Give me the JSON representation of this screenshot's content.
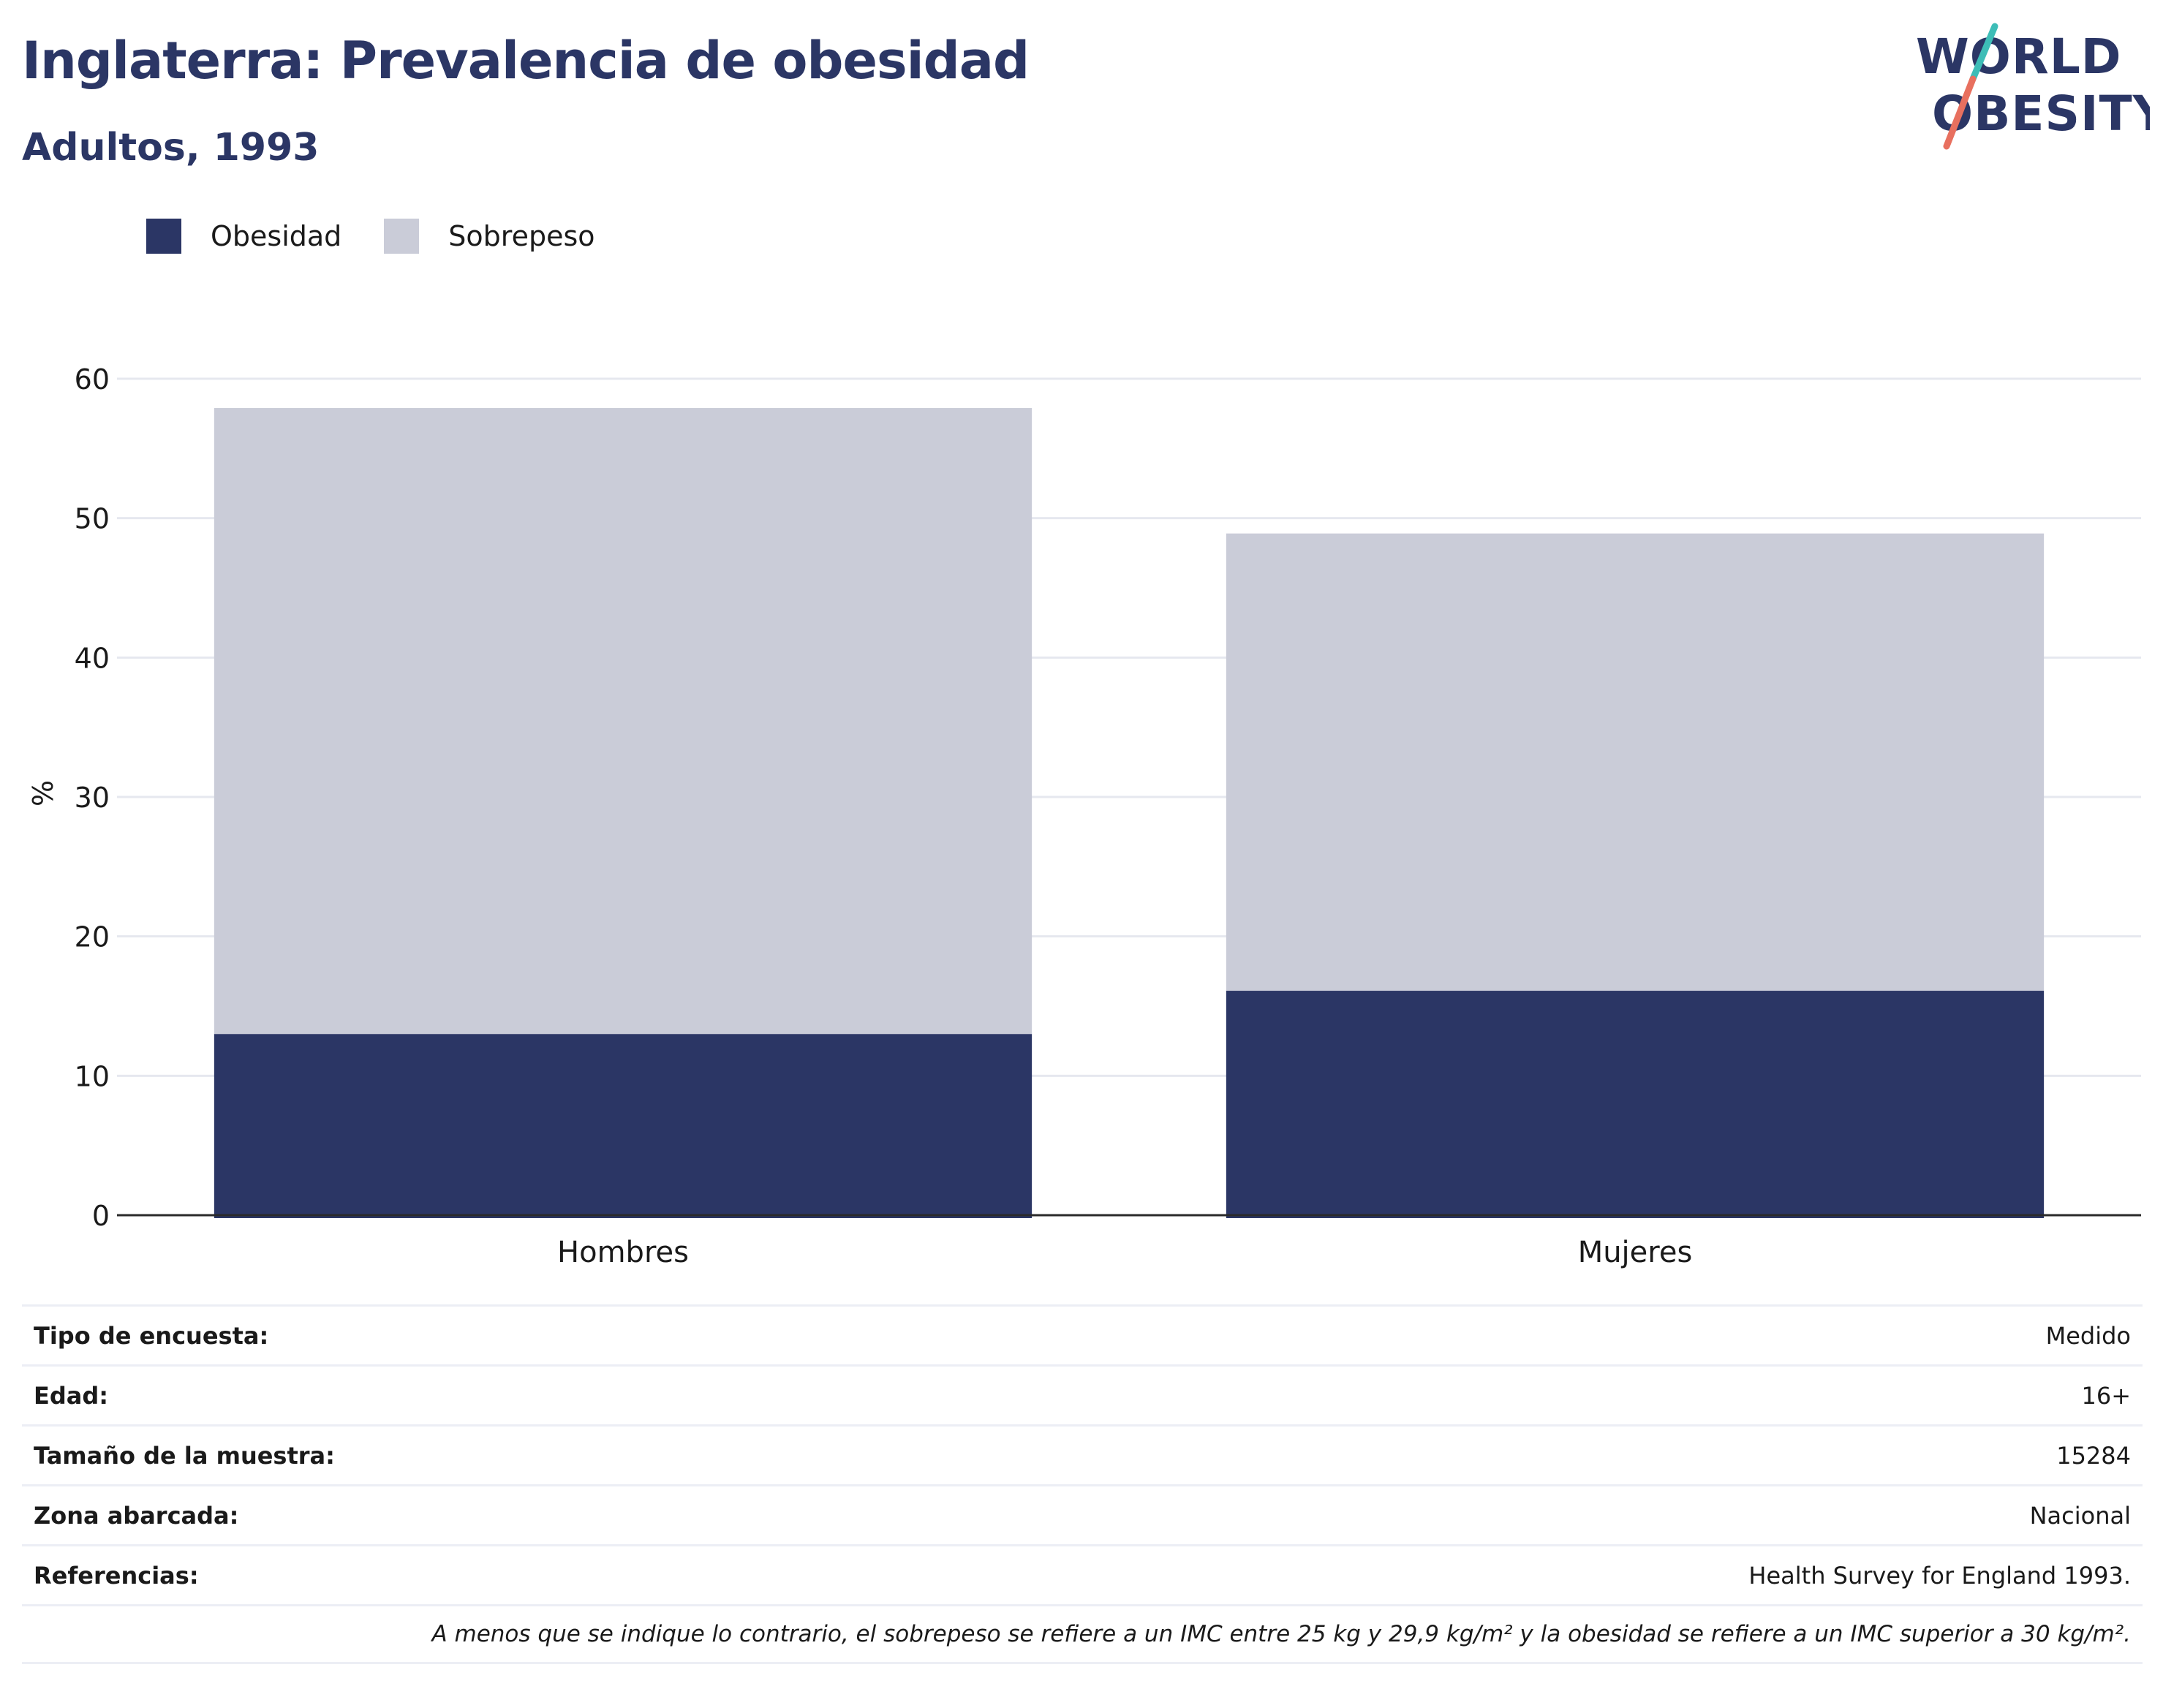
{
  "header": {
    "title": "Inglaterra: Prevalencia de obesidad",
    "subtitle": "Adultos, 1993"
  },
  "logo": {
    "line1": "WORLD",
    "line2": "OBESITY",
    "accent_teal": "#3dbdb7",
    "accent_coral": "#e8705f"
  },
  "colors": {
    "obesity": "#2b3665",
    "overweight": "#caccd8",
    "title": "#2b3665"
  },
  "chart_data": {
    "type": "bar",
    "stacked": true,
    "categories": [
      "Hombres",
      "Mujeres"
    ],
    "series": [
      {
        "name": "Obesidad",
        "values": [
          13,
          16.1
        ]
      },
      {
        "name": "Sobrepeso",
        "values": [
          44.9,
          32.8
        ]
      }
    ],
    "ylabel": "%",
    "ylim": [
      0,
      60
    ],
    "yticks": [
      0,
      10,
      20,
      30,
      40,
      50,
      60
    ],
    "grid": true,
    "legend": "top-left"
  },
  "info": {
    "rows": [
      {
        "label": "Tipo de encuesta:",
        "value": "Medido"
      },
      {
        "label": "Edad:",
        "value": "16+"
      },
      {
        "label": "Tamaño de la muestra:",
        "value": "15284"
      },
      {
        "label": "Zona abarcada:",
        "value": "Nacional"
      },
      {
        "label": "Referencias:",
        "value": "Health Survey for England 1993."
      }
    ],
    "note": "A menos que se indique lo contrario, el sobrepeso se refiere a un IMC entre 25 kg y 29,9 kg/m² y la obesidad se refiere a un IMC superior a 30 kg/m²."
  }
}
